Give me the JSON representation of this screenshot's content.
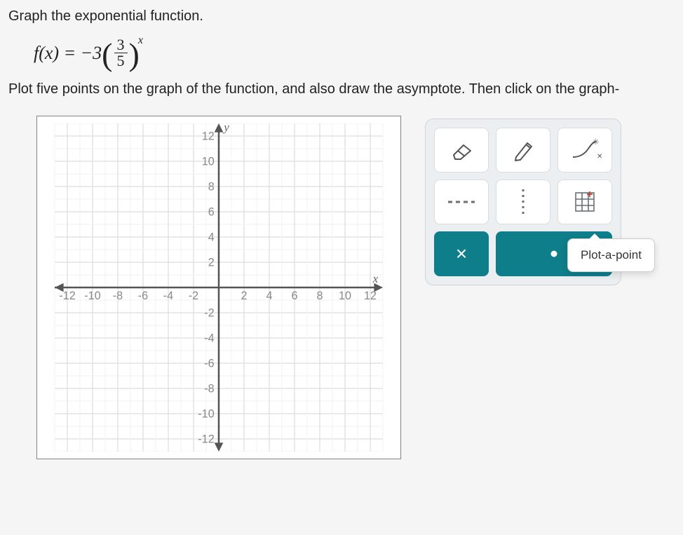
{
  "instruction_1": "Graph the exponential function.",
  "formula": {
    "lhs": "f(x) = −3",
    "numerator": "3",
    "denominator": "5",
    "exponent": "x"
  },
  "instruction_2": "Plot five points on the graph of the function, and also draw the asymptote. Then click on the graph-",
  "chart": {
    "type": "empty-cartesian-grid",
    "xlim": [
      -13,
      13
    ],
    "ylim": [
      -13,
      13
    ],
    "xtick_step": 2,
    "ytick_step": 2,
    "xticks": [
      -12,
      -10,
      -8,
      -6,
      -4,
      -2,
      2,
      4,
      6,
      8,
      10,
      12
    ],
    "yticks": [
      -12,
      -10,
      -8,
      -6,
      -4,
      -2,
      2,
      4,
      6,
      8,
      10,
      12
    ],
    "major_grid_color": "#dedede",
    "minor_grid_color": "#eeeeee",
    "axis_color": "#555555",
    "background_color": "#ffffff",
    "tick_label_fontsize": 10,
    "tick_label_color": "#888888",
    "xlabel": "x",
    "ylabel": "y"
  },
  "toolbox": {
    "tools": [
      {
        "name": "eraser-icon"
      },
      {
        "name": "pencil-icon"
      },
      {
        "name": "curve-icon"
      },
      {
        "name": "dashed-line-icon"
      },
      {
        "name": "dotted-line-vertical-icon"
      },
      {
        "name": "grid-region-icon"
      }
    ],
    "close_label": "×",
    "plot_point_button_name": "plot-a-point-button",
    "tooltip_text": "Plot-a-point",
    "active_bg": "#0e7e8a",
    "panel_bg": "#eceff1"
  }
}
